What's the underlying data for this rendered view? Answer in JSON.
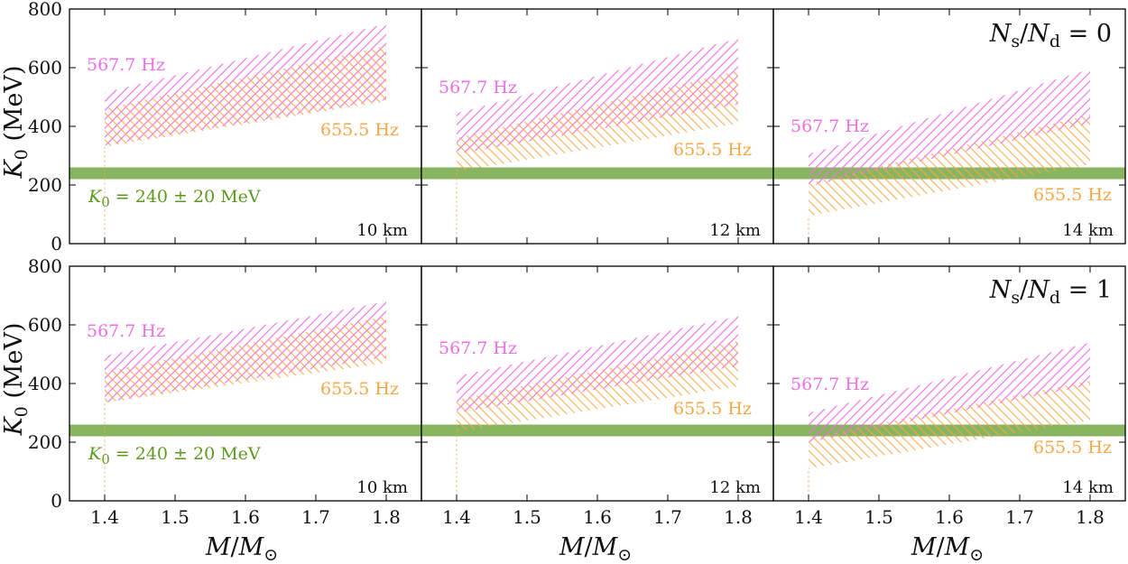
{
  "chart_data": {
    "type": "area",
    "title": "",
    "ylabel_main": "K",
    "ylabel_sub": "0",
    "ylabel_unit": " (MeV)",
    "xlabel_main": "M",
    "xlabel_slash": "/",
    "xlabel_sub": "⊙",
    "xlim": [
      1.35,
      1.85
    ],
    "ylim": [
      0,
      800
    ],
    "x_ticks": [
      1.4,
      1.5,
      1.6,
      1.7,
      1.8
    ],
    "x_tick_labels": [
      "1.4",
      "1.5",
      "1.6",
      "1.7",
      "1.8"
    ],
    "y_ticks": [
      0,
      200,
      400,
      600,
      800
    ],
    "y_tick_labels": [
      "0",
      "200",
      "400",
      "600",
      "800"
    ],
    "reference_band": {
      "center": 240,
      "half_width": 20,
      "label_k": "K",
      "label_sub": "0",
      "label_rest": " = 240 ± 20 MeV",
      "color": "#8ab560",
      "label_color": "#5c9a1f"
    },
    "series_styles": [
      {
        "name": "567.7 Hz",
        "color": "#ee6ee6"
      },
      {
        "name": "655.5 Hz",
        "color": "#f7a646"
      }
    ],
    "rows": [
      {
        "ratio_label_n": "N",
        "ratio_label_s": "s",
        "ratio_label_slash": "/",
        "ratio_label_n2": "N",
        "ratio_label_d": "d",
        "ratio_label_value": " = 0",
        "panels": [
          {
            "radius_label": "10 km",
            "x": [
              1.4,
              1.8
            ],
            "series": [
              {
                "name": "567.7 Hz",
                "lower": [
                  335,
                  490
                ],
                "upper": [
                  515,
                  750
                ]
              },
              {
                "name": "655.5 Hz",
                "lower": [
                  330,
                  485
                ],
                "upper": [
                  460,
                  675
                ]
              }
            ]
          },
          {
            "radius_label": "12 km",
            "x": [
              1.4,
              1.8
            ],
            "series": [
              {
                "name": "567.7 Hz",
                "lower": [
                  305,
                  475
                ],
                "upper": [
                  445,
                  700
                ]
              },
              {
                "name": "655.5 Hz",
                "lower": [
                  245,
                  410
                ],
                "upper": [
                  360,
                  590
                ]
              }
            ]
          },
          {
            "radius_label": "14 km",
            "x": [
              1.4,
              1.8
            ],
            "series": [
              {
                "name": "567.7 Hz",
                "lower": [
                  195,
                  410
                ],
                "upper": [
                  305,
                  595
                ]
              },
              {
                "name": "655.5 Hz",
                "lower": [
                  95,
                  270
                ],
                "upper": [
                  205,
                  440
                ]
              }
            ]
          }
        ]
      },
      {
        "ratio_label_n": "N",
        "ratio_label_s": "s",
        "ratio_label_slash": "/",
        "ratio_label_n2": "N",
        "ratio_label_d": "d",
        "ratio_label_value": " = 1",
        "panels": [
          {
            "radius_label": "10 km",
            "x": [
              1.4,
              1.8
            ],
            "series": [
              {
                "name": "567.7 Hz",
                "lower": [
                  335,
                  490
                ],
                "upper": [
                  495,
                  680
                ]
              },
              {
                "name": "655.5 Hz",
                "lower": [
                  335,
                  470
                ],
                "upper": [
                  440,
                  630
                ]
              }
            ]
          },
          {
            "radius_label": "12 km",
            "x": [
              1.4,
              1.8
            ],
            "series": [
              {
                "name": "567.7 Hz",
                "lower": [
                  300,
                  460
                ],
                "upper": [
                  425,
                  630
                ]
              },
              {
                "name": "655.5 Hz",
                "lower": [
                  235,
                  390
                ],
                "upper": [
                  345,
                  545
                ]
              }
            ]
          },
          {
            "radius_label": "14 km",
            "x": [
              1.4,
              1.8
            ],
            "series": [
              {
                "name": "567.7 Hz",
                "lower": [
                  200,
                  395
                ],
                "upper": [
                  300,
                  540
                ]
              },
              {
                "name": "655.5 Hz",
                "lower": [
                  110,
                  275
                ],
                "upper": [
                  215,
                  410
                ]
              }
            ]
          }
        ]
      }
    ]
  }
}
